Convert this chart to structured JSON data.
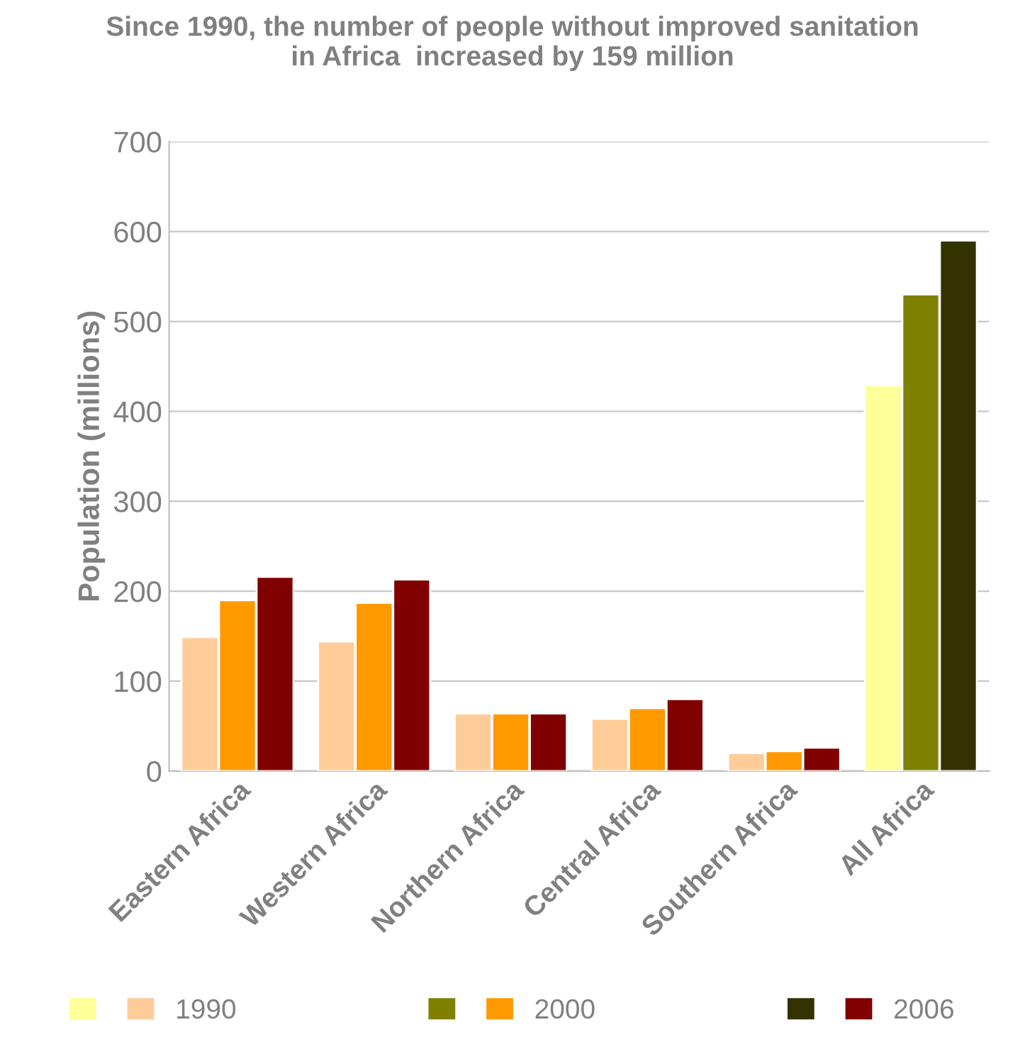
{
  "chart_data": {
    "type": "bar",
    "title": "Since 1990, the number of people without improved sanitation\nin Africa  increased by 159 million",
    "ylabel": "Population (millions)",
    "categories": [
      "Eastern Africa",
      "Western Africa",
      "Northern Africa",
      "Central Africa",
      "Southern Africa",
      "All Africa"
    ],
    "series": [
      {
        "name": "1990",
        "colors": [
          "#ffcc99",
          "#ffcc99",
          "#ffcc99",
          "#ffcc99",
          "#ffcc99",
          "#ffff99"
        ],
        "values": [
          149,
          144,
          64,
          58,
          20,
          429
        ]
      },
      {
        "name": "2000",
        "colors": [
          "#ff9900",
          "#ff9900",
          "#ff9900",
          "#ff9900",
          "#ff9900",
          "#808000"
        ],
        "values": [
          190,
          187,
          64,
          70,
          22,
          530
        ]
      },
      {
        "name": "2006",
        "colors": [
          "#800000",
          "#800000",
          "#800000",
          "#800000",
          "#800000",
          "#333300"
        ],
        "values": [
          216,
          213,
          64,
          80,
          26,
          590
        ]
      }
    ],
    "ylim": [
      0,
      700
    ],
    "yticks": [
      0,
      100,
      200,
      300,
      400,
      500,
      600,
      700
    ],
    "grid": "y",
    "legend": "bottom"
  }
}
